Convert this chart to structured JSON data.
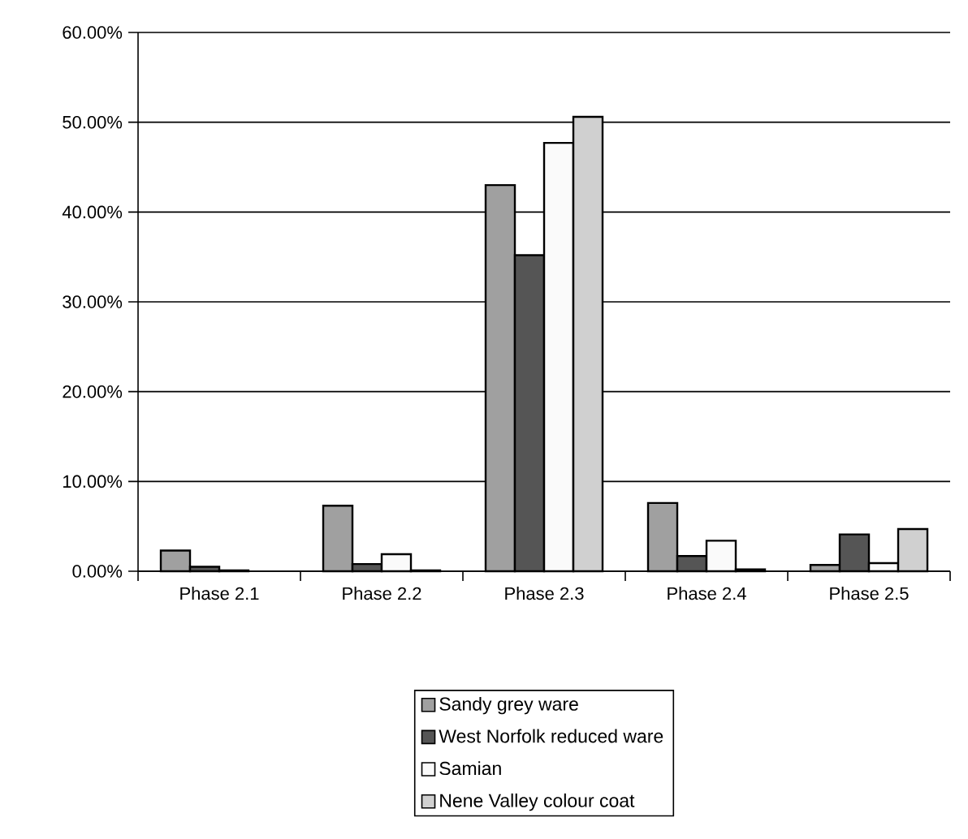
{
  "chart_data": {
    "type": "bar",
    "categories": [
      "Phase 2.1",
      "Phase 2.2",
      "Phase 2.3",
      "Phase 2.4",
      "Phase 2.5"
    ],
    "series": [
      {
        "name": "Sandy grey ware",
        "color": "#a0a0a0",
        "values": [
          2.3,
          7.3,
          43.0,
          7.6,
          0.7
        ]
      },
      {
        "name": "West Norfolk reduced ware",
        "color": "#555555",
        "values": [
          0.5,
          0.8,
          35.2,
          1.7,
          4.1
        ]
      },
      {
        "name": "Samian",
        "color": "#fafafa",
        "values": [
          0.1,
          1.9,
          47.7,
          3.4,
          0.9
        ]
      },
      {
        "name": "Nene Valley colour coat",
        "color": "#d0d0d0",
        "values": [
          null,
          0.1,
          50.6,
          0.2,
          4.7
        ]
      }
    ],
    "ylim": [
      0,
      60
    ],
    "yticks": [
      {
        "value": 0,
        "label": "0.00%"
      },
      {
        "value": 10,
        "label": "10.00%"
      },
      {
        "value": 20,
        "label": "20.00%"
      },
      {
        "value": 30,
        "label": "30.00%"
      },
      {
        "value": 40,
        "label": "40.00%"
      },
      {
        "value": 50,
        "label": "50.00%"
      },
      {
        "value": 60,
        "label": "60.00%"
      }
    ],
    "grid": "y",
    "legend": "bottom"
  }
}
